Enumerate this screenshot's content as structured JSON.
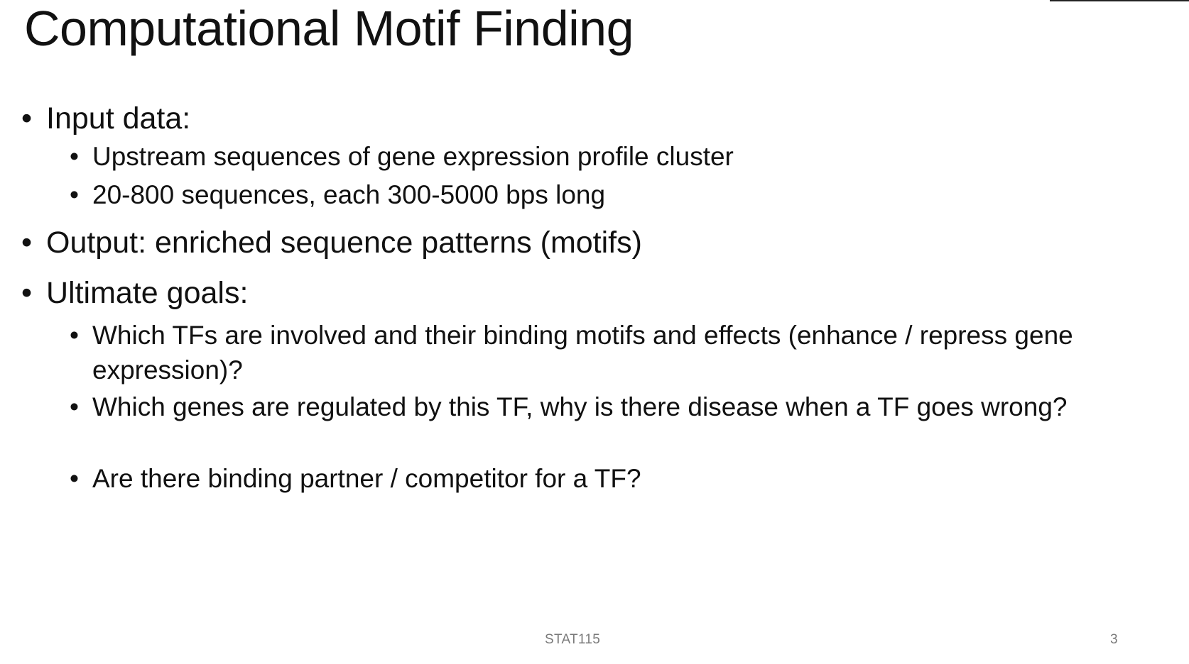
{
  "slide": {
    "title": "Computational Motif Finding",
    "bullets": [
      {
        "text": "Input data:",
        "sub": [
          "Upstream sequences of gene expression profile cluster",
          "20-800 sequences, each 300-5000 bps long"
        ]
      },
      {
        "text": "Output: enriched sequence patterns (motifs)",
        "sub": []
      },
      {
        "text": "Ultimate goals:",
        "sub": [
          "Which TFs are involved and their binding motifs and effects (enhance / repress gene expression)?",
          "Which genes are regulated by this TF, why is there disease when a TF goes wrong?",
          "Are there binding partner / competitor for a TF?"
        ]
      }
    ],
    "bullet_glyph": "•",
    "footer": "STAT115",
    "page_number": "3"
  }
}
